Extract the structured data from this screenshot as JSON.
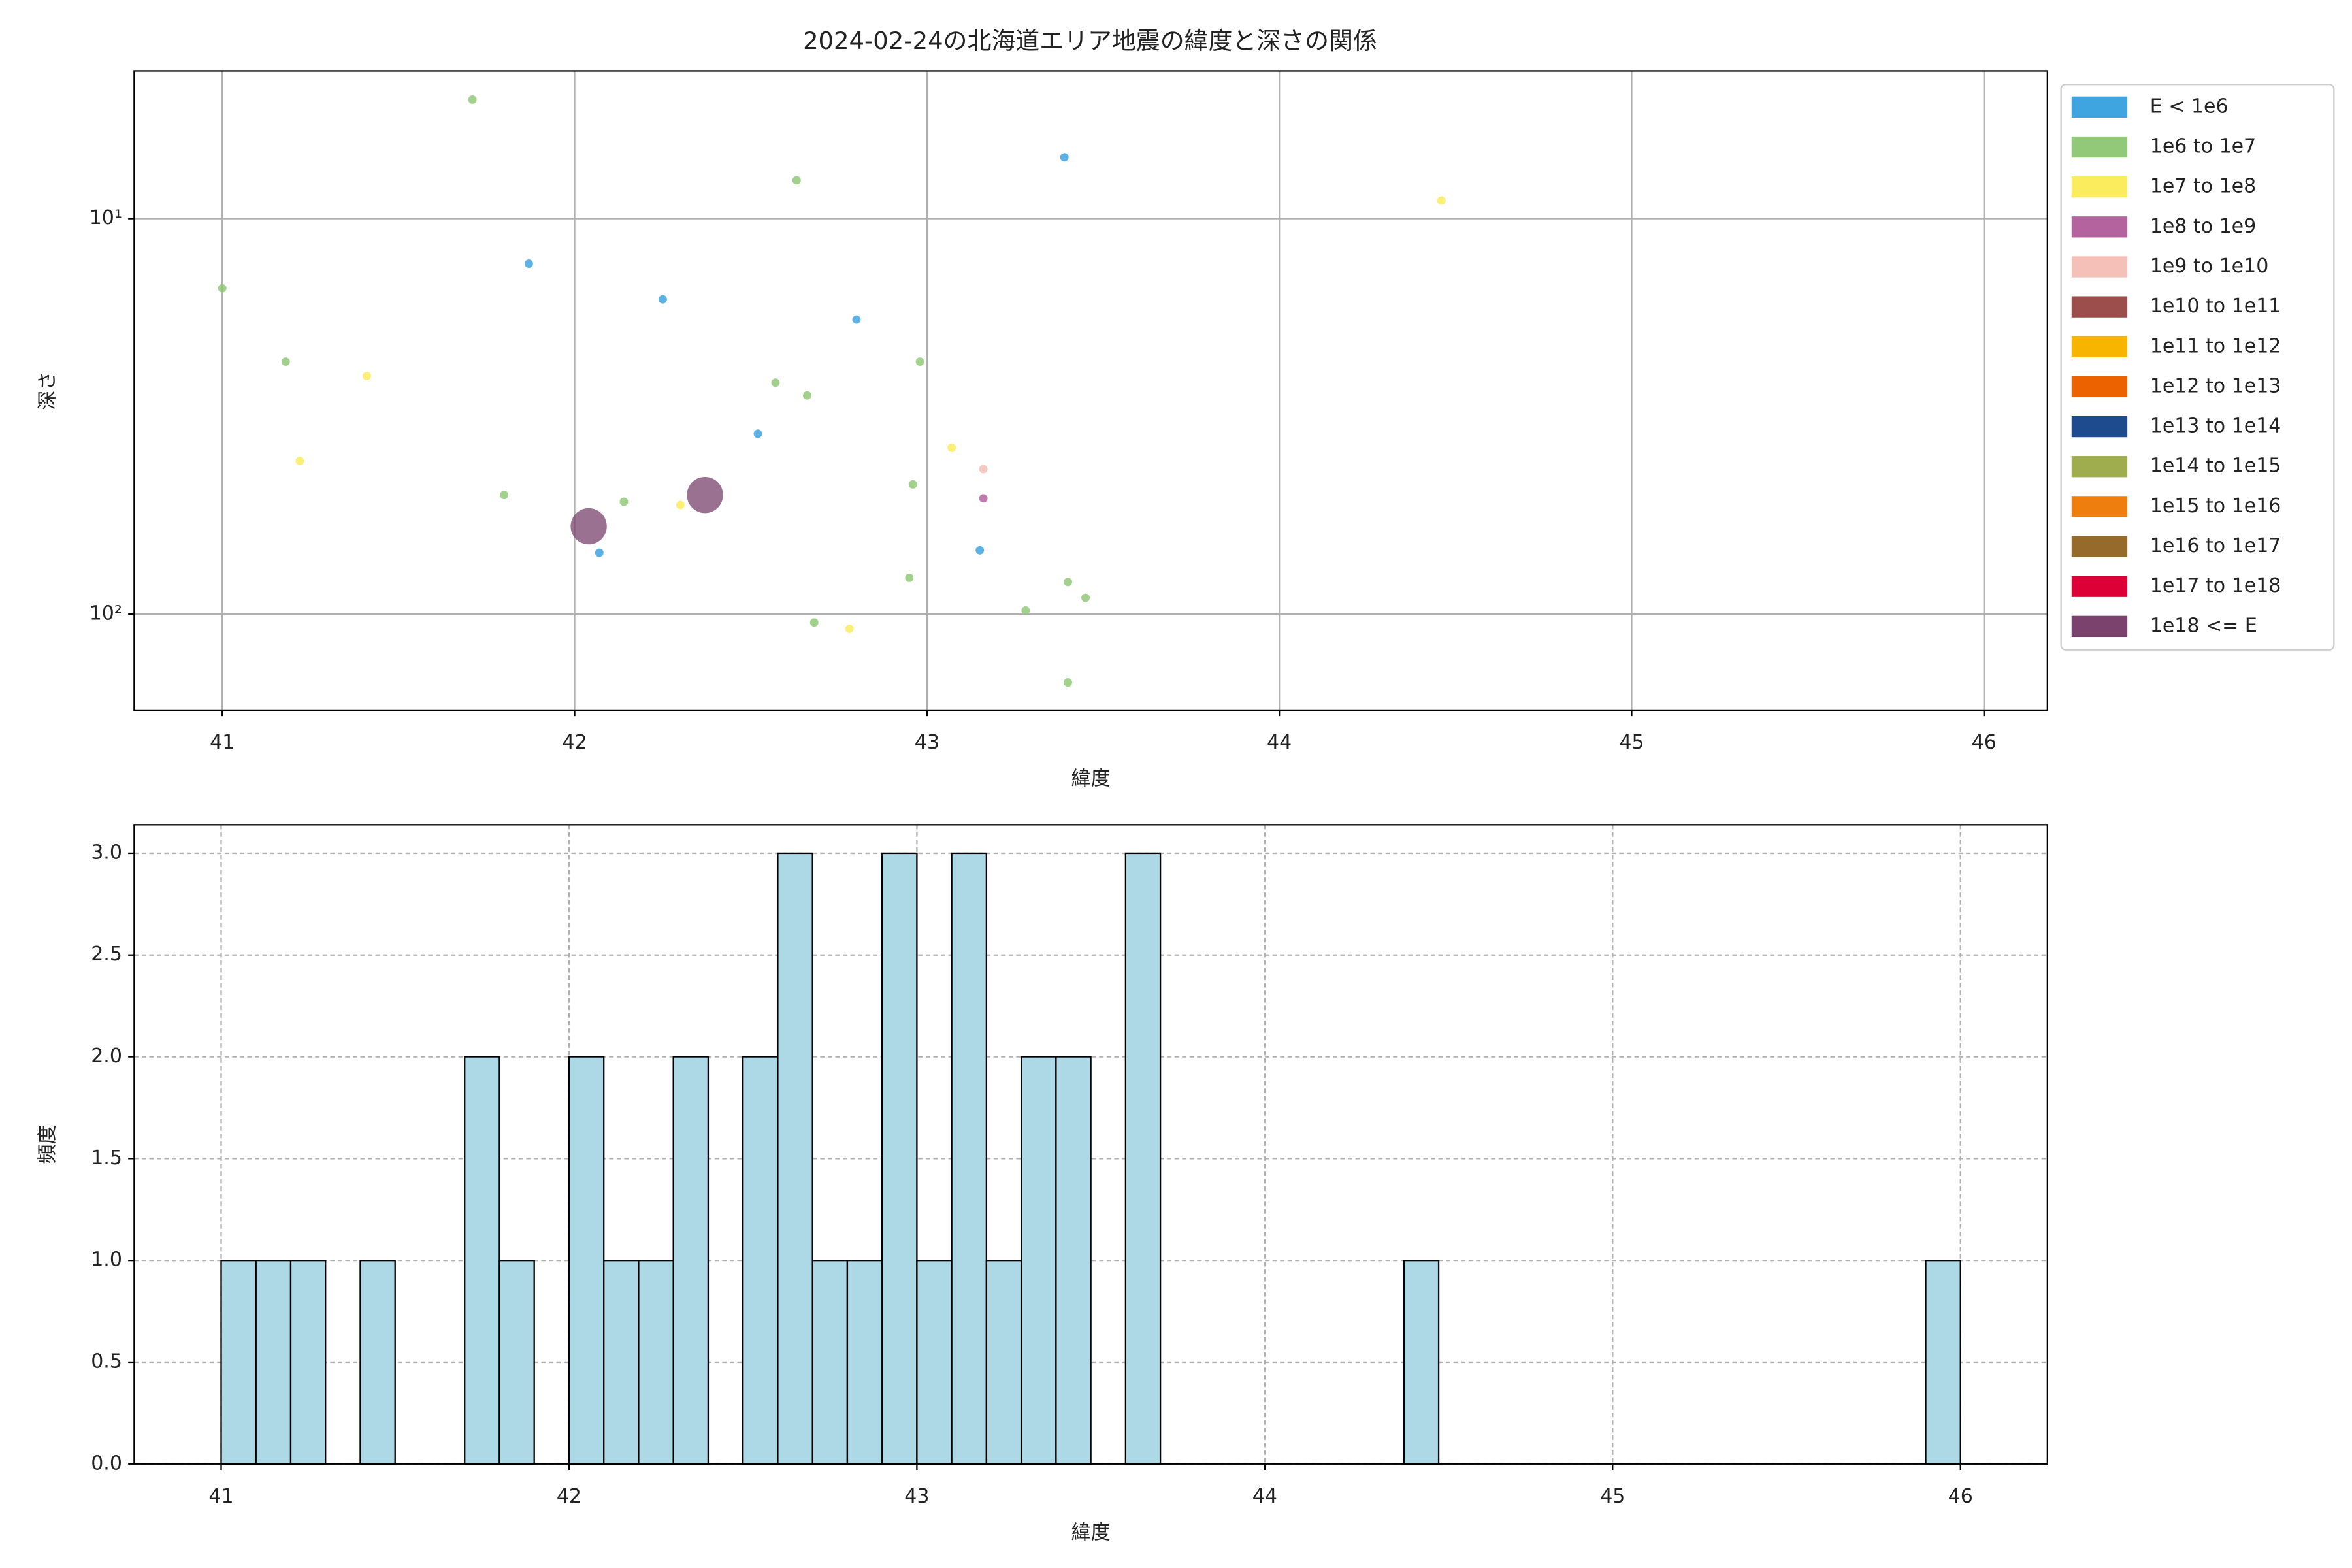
{
  "chart_data": [
    {
      "type": "scatter",
      "title": "2024-02-24の北海道エリア地震の緯度と深さの関係",
      "x_label": "緯度",
      "y_label": "深さ",
      "xlim": [
        40.75,
        46.18
      ],
      "xticks": [
        41,
        42,
        43,
        44,
        45,
        46
      ],
      "ylim": [
        175,
        4.23
      ],
      "yticks": [
        {
          "value": 10,
          "label": "10¹"
        },
        {
          "value": 100,
          "label": "10²"
        }
      ],
      "y_scale": "log",
      "grid": true,
      "legend": "outside-right",
      "series": [
        {
          "name": "E < 1e6",
          "color": "#3fa5e0",
          "x": [
            43.39,
            41.87,
            42.25,
            42.8,
            42.52,
            42.07,
            43.15
          ],
          "values": [
            7,
            13,
            16,
            18,
            35,
            70,
            69
          ]
        },
        {
          "name": "1e6 to 1e7",
          "color": "#92c979",
          "x": [
            41.71,
            42.63,
            41.0,
            41.18,
            42.98,
            42.57,
            42.66,
            42.96,
            41.8,
            42.14,
            42.95,
            43.4,
            43.45,
            43.28,
            42.68,
            43.4
          ],
          "values": [
            5,
            8,
            15,
            23,
            23,
            26,
            28,
            47,
            50,
            52,
            81,
            83,
            91,
            98,
            105,
            149
          ]
        },
        {
          "name": "1e7 to 1e8",
          "color": "#fbec5d",
          "x": [
            44.46,
            41.41,
            41.22,
            43.07,
            42.3,
            42.78
          ],
          "values": [
            9,
            25,
            41,
            38,
            53,
            109
          ]
        },
        {
          "name": "1e8 to 1e9",
          "color": "#b5639f",
          "x": [
            43.16
          ],
          "values": [
            51
          ]
        },
        {
          "name": "1e9 to 1e10",
          "color": "#f5c0b8",
          "x": [
            43.16
          ],
          "values": [
            43
          ]
        },
        {
          "name": "1e10 to 1e11",
          "color": "#9b4e4b",
          "x": [],
          "values": []
        },
        {
          "name": "1e11 to 1e12",
          "color": "#f8b500",
          "x": [],
          "values": []
        },
        {
          "name": "1e12 to 1e13",
          "color": "#ec6100",
          "x": [],
          "values": []
        },
        {
          "name": "1e13 to 1e14",
          "color": "#1e4a8e",
          "x": [],
          "values": []
        },
        {
          "name": "1e14 to 1e15",
          "color": "#a0ad4f",
          "x": [],
          "values": []
        },
        {
          "name": "1e15 to 1e16",
          "color": "#ee7f0e",
          "x": [],
          "values": []
        },
        {
          "name": "1e16 to 1e17",
          "color": "#956a2b",
          "x": [],
          "values": []
        },
        {
          "name": "1e17 to 1e18",
          "color": "#dc0036",
          "x": [],
          "values": []
        },
        {
          "name": "1e18 <= E",
          "color": "#7a426c",
          "x": [
            42.37,
            42.04
          ],
          "values": [
            50,
            60
          ]
        }
      ]
    },
    {
      "type": "histogram",
      "x_label": "緯度",
      "y_label": "頻度",
      "color": "#add8e6",
      "xlim": [
        40.75,
        46.25
      ],
      "xticks": [
        41,
        42,
        43,
        44,
        45,
        46
      ],
      "ylim": [
        0,
        3.14
      ],
      "yticks": [
        {
          "value": 0,
          "label": "0.0"
        },
        {
          "value": 0.5,
          "label": "0.5"
        },
        {
          "value": 1,
          "label": "1.0"
        },
        {
          "value": 1.5,
          "label": "1.5"
        },
        {
          "value": 2,
          "label": "2.0"
        },
        {
          "value": 2.5,
          "label": "2.5"
        },
        {
          "value": 3,
          "label": "3.0"
        }
      ],
      "grid": true,
      "bins": [
        41,
        41.1,
        41.2,
        41.3,
        41.4,
        41.5,
        41.6,
        41.7,
        41.8,
        41.9,
        42,
        42.1,
        42.2,
        42.3,
        42.4,
        42.5,
        42.6,
        42.7,
        42.8,
        42.9,
        43,
        43.1,
        43.2,
        43.3,
        43.4,
        43.5,
        43.6,
        43.7,
        43.8,
        43.9,
        44,
        44.1,
        44.2,
        44.3,
        44.4,
        44.5,
        44.6,
        44.7,
        44.8,
        44.9,
        45,
        45.1,
        45.2,
        45.3,
        45.4,
        45.5,
        45.6,
        45.7,
        45.8,
        45.9,
        46
      ],
      "values": [
        1,
        1,
        1,
        0,
        1,
        0,
        0,
        2,
        1,
        0,
        2,
        1,
        1,
        2,
        0,
        2,
        3,
        1,
        1,
        3,
        1,
        3,
        1,
        2,
        2,
        0,
        3,
        0,
        0,
        0,
        0,
        0,
        0,
        0,
        1,
        0,
        0,
        0,
        0,
        0,
        0,
        0,
        0,
        0,
        0,
        0,
        0,
        0,
        0,
        1
      ]
    }
  ]
}
